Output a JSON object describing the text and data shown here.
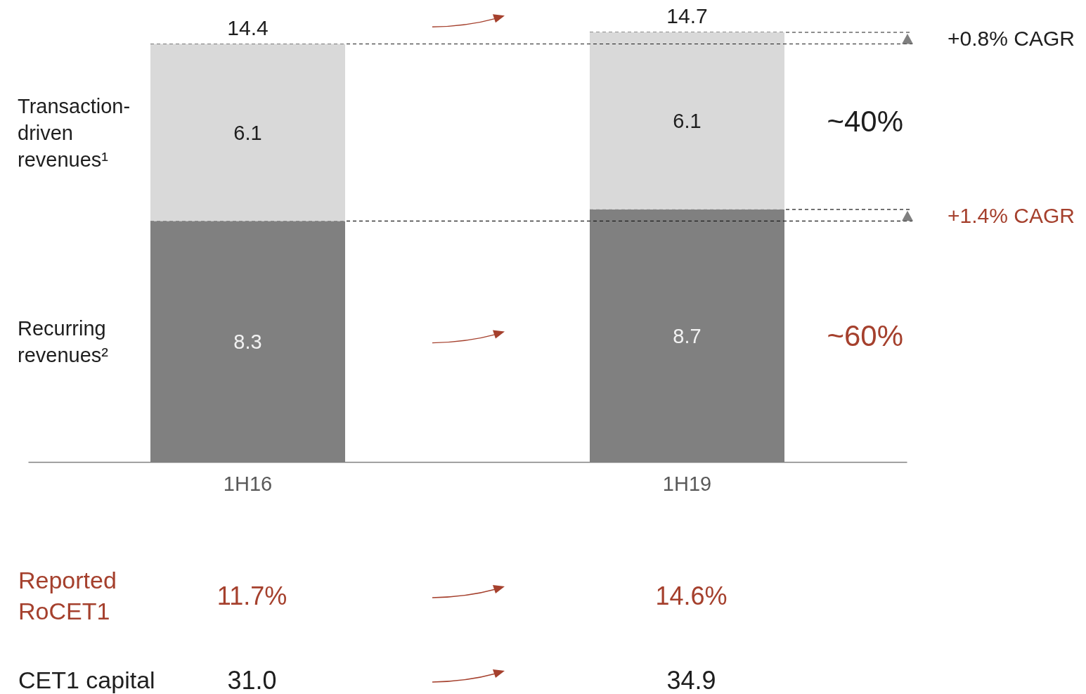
{
  "chart_data": {
    "type": "bar",
    "stacked": true,
    "categories": [
      "1H16",
      "1H19"
    ],
    "series": [
      {
        "name": "Recurring revenues²",
        "color": "#808080",
        "values": [
          8.3,
          8.7
        ]
      },
      {
        "name": "Transaction-driven revenues¹",
        "color": "#d9d9d9",
        "values": [
          6.1,
          6.1
        ]
      }
    ],
    "data_labels": true,
    "totals": [
      "14.4",
      "14.7"
    ],
    "ref_lines": [
      {
        "axis": "y",
        "value": 14.4,
        "line_style": "dashed",
        "color": "#1e1e1e"
      },
      {
        "axis": "y",
        "value": 14.8,
        "line_style": "dashed",
        "color": "#1e1e1e"
      },
      {
        "axis": "y",
        "value": 8.3,
        "line_style": "dashed",
        "color": "#1e1e1e"
      },
      {
        "axis": "y",
        "value": 8.7,
        "line_style": "dashed",
        "color": "#1e1e1e"
      }
    ],
    "annotations": [
      "+0.8% CAGR",
      "~40%",
      "+1.4% CAGR",
      "~60%",
      "Reported RoCET1",
      "11.7%",
      "14.6%",
      "CET1 capital",
      "31.0",
      "34.9"
    ]
  }
}
